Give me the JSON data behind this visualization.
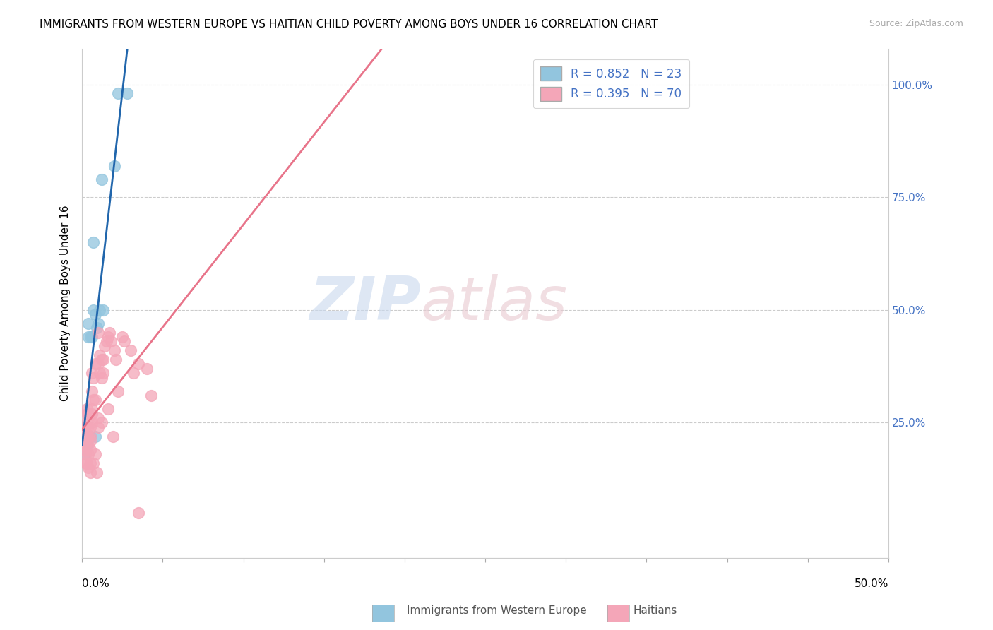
{
  "title": "IMMIGRANTS FROM WESTERN EUROPE VS HAITIAN CHILD POVERTY AMONG BOYS UNDER 16 CORRELATION CHART",
  "source": "Source: ZipAtlas.com",
  "ylabel": "Child Poverty Among Boys Under 16",
  "legend_blue_label": "R = 0.852   N = 23",
  "legend_pink_label": "R = 0.395   N = 70",
  "blue_color": "#92c5de",
  "pink_color": "#f4a6b8",
  "line_blue": "#2166ac",
  "line_pink": "#e8748a",
  "watermark_zip": "ZIP",
  "watermark_atlas": "atlas",
  "blue_scatter": [
    [
      0.001,
      0.2
    ],
    [
      0.001,
      0.18
    ],
    [
      0.002,
      0.21
    ],
    [
      0.002,
      0.22
    ],
    [
      0.003,
      0.22
    ],
    [
      0.003,
      0.2
    ],
    [
      0.004,
      0.47
    ],
    [
      0.004,
      0.44
    ],
    [
      0.005,
      0.22
    ],
    [
      0.005,
      0.44
    ],
    [
      0.006,
      0.44
    ],
    [
      0.007,
      0.65
    ],
    [
      0.007,
      0.5
    ],
    [
      0.008,
      0.49
    ],
    [
      0.008,
      0.22
    ],
    [
      0.009,
      0.46
    ],
    [
      0.01,
      0.47
    ],
    [
      0.011,
      0.5
    ],
    [
      0.012,
      0.79
    ],
    [
      0.013,
      0.5
    ],
    [
      0.02,
      0.82
    ],
    [
      0.022,
      0.98
    ],
    [
      0.028,
      0.98
    ]
  ],
  "pink_scatter": [
    [
      0.001,
      0.21
    ],
    [
      0.001,
      0.22
    ],
    [
      0.001,
      0.23
    ],
    [
      0.001,
      0.24
    ],
    [
      0.001,
      0.2
    ],
    [
      0.001,
      0.19
    ],
    [
      0.002,
      0.24
    ],
    [
      0.002,
      0.22
    ],
    [
      0.002,
      0.23
    ],
    [
      0.002,
      0.2
    ],
    [
      0.002,
      0.18
    ],
    [
      0.002,
      0.16
    ],
    [
      0.003,
      0.28
    ],
    [
      0.003,
      0.25
    ],
    [
      0.003,
      0.27
    ],
    [
      0.003,
      0.24
    ],
    [
      0.003,
      0.22
    ],
    [
      0.003,
      0.16
    ],
    [
      0.004,
      0.27
    ],
    [
      0.004,
      0.22
    ],
    [
      0.004,
      0.2
    ],
    [
      0.004,
      0.18
    ],
    [
      0.004,
      0.15
    ],
    [
      0.005,
      0.24
    ],
    [
      0.005,
      0.22
    ],
    [
      0.005,
      0.21
    ],
    [
      0.005,
      0.19
    ],
    [
      0.005,
      0.16
    ],
    [
      0.005,
      0.14
    ],
    [
      0.006,
      0.36
    ],
    [
      0.006,
      0.32
    ],
    [
      0.006,
      0.28
    ],
    [
      0.006,
      0.27
    ],
    [
      0.006,
      0.25
    ],
    [
      0.007,
      0.35
    ],
    [
      0.007,
      0.3
    ],
    [
      0.007,
      0.16
    ],
    [
      0.008,
      0.38
    ],
    [
      0.008,
      0.3
    ],
    [
      0.008,
      0.18
    ],
    [
      0.009,
      0.14
    ],
    [
      0.01,
      0.45
    ],
    [
      0.01,
      0.38
    ],
    [
      0.01,
      0.26
    ],
    [
      0.01,
      0.24
    ],
    [
      0.011,
      0.4
    ],
    [
      0.011,
      0.36
    ],
    [
      0.012,
      0.39
    ],
    [
      0.012,
      0.35
    ],
    [
      0.012,
      0.25
    ],
    [
      0.013,
      0.39
    ],
    [
      0.013,
      0.36
    ],
    [
      0.014,
      0.42
    ],
    [
      0.015,
      0.43
    ],
    [
      0.016,
      0.44
    ],
    [
      0.016,
      0.28
    ],
    [
      0.017,
      0.45
    ],
    [
      0.018,
      0.43
    ],
    [
      0.019,
      0.22
    ],
    [
      0.02,
      0.41
    ],
    [
      0.021,
      0.39
    ],
    [
      0.022,
      0.32
    ],
    [
      0.025,
      0.44
    ],
    [
      0.026,
      0.43
    ],
    [
      0.03,
      0.41
    ],
    [
      0.032,
      0.36
    ],
    [
      0.035,
      0.38
    ],
    [
      0.04,
      0.37
    ],
    [
      0.035,
      0.05
    ],
    [
      0.043,
      0.31
    ]
  ],
  "xlim": [
    0.0,
    0.5
  ],
  "ylim_min": -0.05,
  "ylim_max": 1.08,
  "right_yticks": [
    0.25,
    0.5,
    0.75,
    1.0
  ],
  "right_yticklabels": [
    "25.0%",
    "50.0%",
    "75.0%",
    "100.0%"
  ],
  "xtick_label_left": "0.0%",
  "xtick_label_right": "50.0%",
  "legend_bottom_blue": "Immigrants from Western Europe",
  "legend_bottom_pink": "Haitians"
}
